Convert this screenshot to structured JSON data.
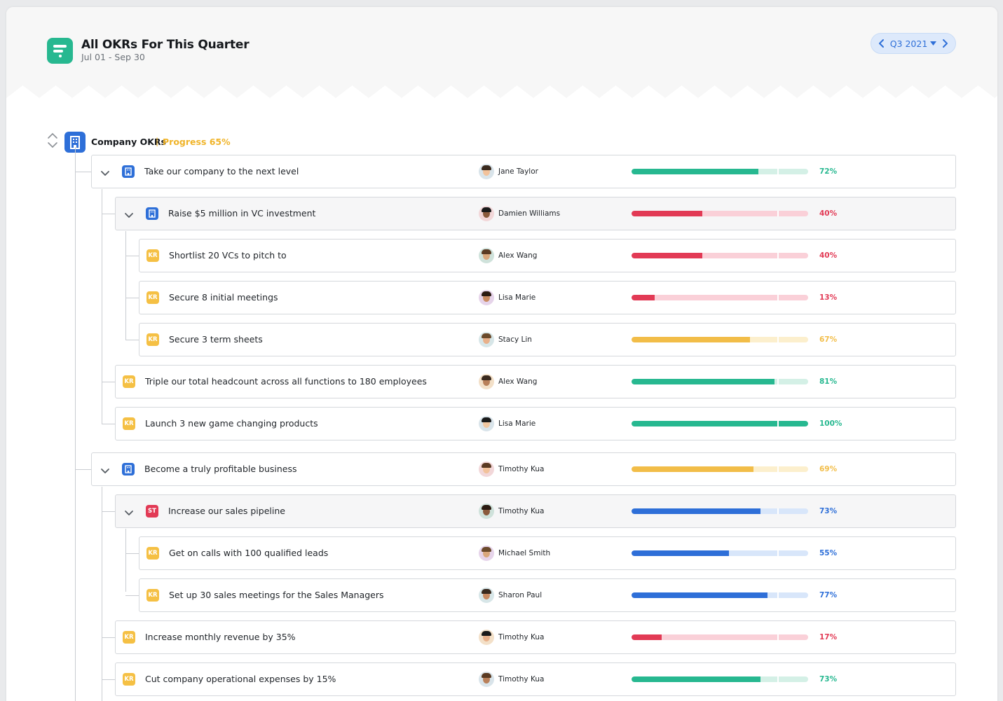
{
  "header": {
    "title": "All OKRs For This Quarter",
    "subtitle": "Jul 01 - Sep 30",
    "quarter": "Q3 2021"
  },
  "company": {
    "label": "Company OKRs",
    "separator": "|",
    "progress_text": "Progress 65%"
  },
  "colors": {
    "green": "#27b890",
    "green_track": "#d4f0e6",
    "red": "#e23a55",
    "red_track": "#fad0d8",
    "yellow": "#f2bd48",
    "yellow_track": "#fcefcd",
    "blue": "#2e6fd8",
    "blue_track": "#d8e6fa"
  },
  "rows": [
    {
      "type": "obj",
      "icon": "building-icon",
      "title": "Take our company to the next level",
      "owner": "Jane Taylor",
      "progress": 72,
      "percent_label": "72%",
      "color": "green",
      "level": 0,
      "expandable": true
    },
    {
      "type": "obj",
      "icon": "building-icon",
      "title": "Raise $5 million in VC investment",
      "owner": "Damien Williams",
      "progress": 40,
      "percent_label": "40%",
      "color": "red",
      "level": 1,
      "expandable": true
    },
    {
      "type": "kr",
      "icon_text": "KR",
      "title": "Shortlist 20 VCs to pitch to",
      "owner": "Alex Wang",
      "progress": 40,
      "percent_label": "40%",
      "color": "red",
      "level": 2
    },
    {
      "type": "kr",
      "icon_text": "KR",
      "title": "Secure 8 initial meetings",
      "owner": "Lisa Marie",
      "progress": 13,
      "percent_label": "13%",
      "color": "red",
      "level": 2
    },
    {
      "type": "kr",
      "icon_text": "KR",
      "title": "Secure 3 term sheets",
      "owner": "Stacy Lin",
      "progress": 67,
      "percent_label": "67%",
      "color": "yellow",
      "level": 2
    },
    {
      "type": "kr",
      "icon_text": "KR",
      "title": "Triple our total headcount across all functions to 180 employees",
      "owner": "Alex Wang",
      "progress": 81,
      "percent_label": "81%",
      "color": "green",
      "level": 1
    },
    {
      "type": "kr",
      "icon_text": "KR",
      "title": "Launch 3 new game changing products",
      "owner": "Lisa Marie",
      "progress": 100,
      "percent_label": "100%",
      "color": "green",
      "level": 1
    },
    {
      "type": "obj",
      "icon": "building-icon",
      "title": "Become a truly profitable business",
      "owner": "Timothy Kua",
      "progress": 69,
      "percent_label": "69%",
      "color": "yellow",
      "level": 0,
      "expandable": true
    },
    {
      "type": "st",
      "icon_text": "ST",
      "title": "Increase our sales pipeline",
      "owner": "Timothy Kua",
      "progress": 73,
      "percent_label": "73%",
      "color": "blue",
      "level": 1,
      "expandable": true
    },
    {
      "type": "kr",
      "icon_text": "KR",
      "title": "Get on calls with 100 qualified leads",
      "owner": "Michael Smith",
      "progress": 55,
      "percent_label": "55%",
      "color": "blue",
      "level": 2
    },
    {
      "type": "kr",
      "icon_text": "KR",
      "title": "Set up 30 sales meetings for the Sales Managers",
      "owner": "Sharon Paul",
      "progress": 77,
      "percent_label": "77%",
      "color": "blue",
      "level": 2
    },
    {
      "type": "kr",
      "icon_text": "KR",
      "title": "Increase monthly revenue by 35%",
      "owner": "Timothy Kua",
      "progress": 17,
      "percent_label": "17%",
      "color": "red",
      "level": 1
    },
    {
      "type": "kr",
      "icon_text": "KR",
      "title": "Cut company operational expenses by 15%",
      "owner": "Timothy Kua",
      "progress": 73,
      "percent_label": "73%",
      "color": "green",
      "level": 1
    }
  ]
}
